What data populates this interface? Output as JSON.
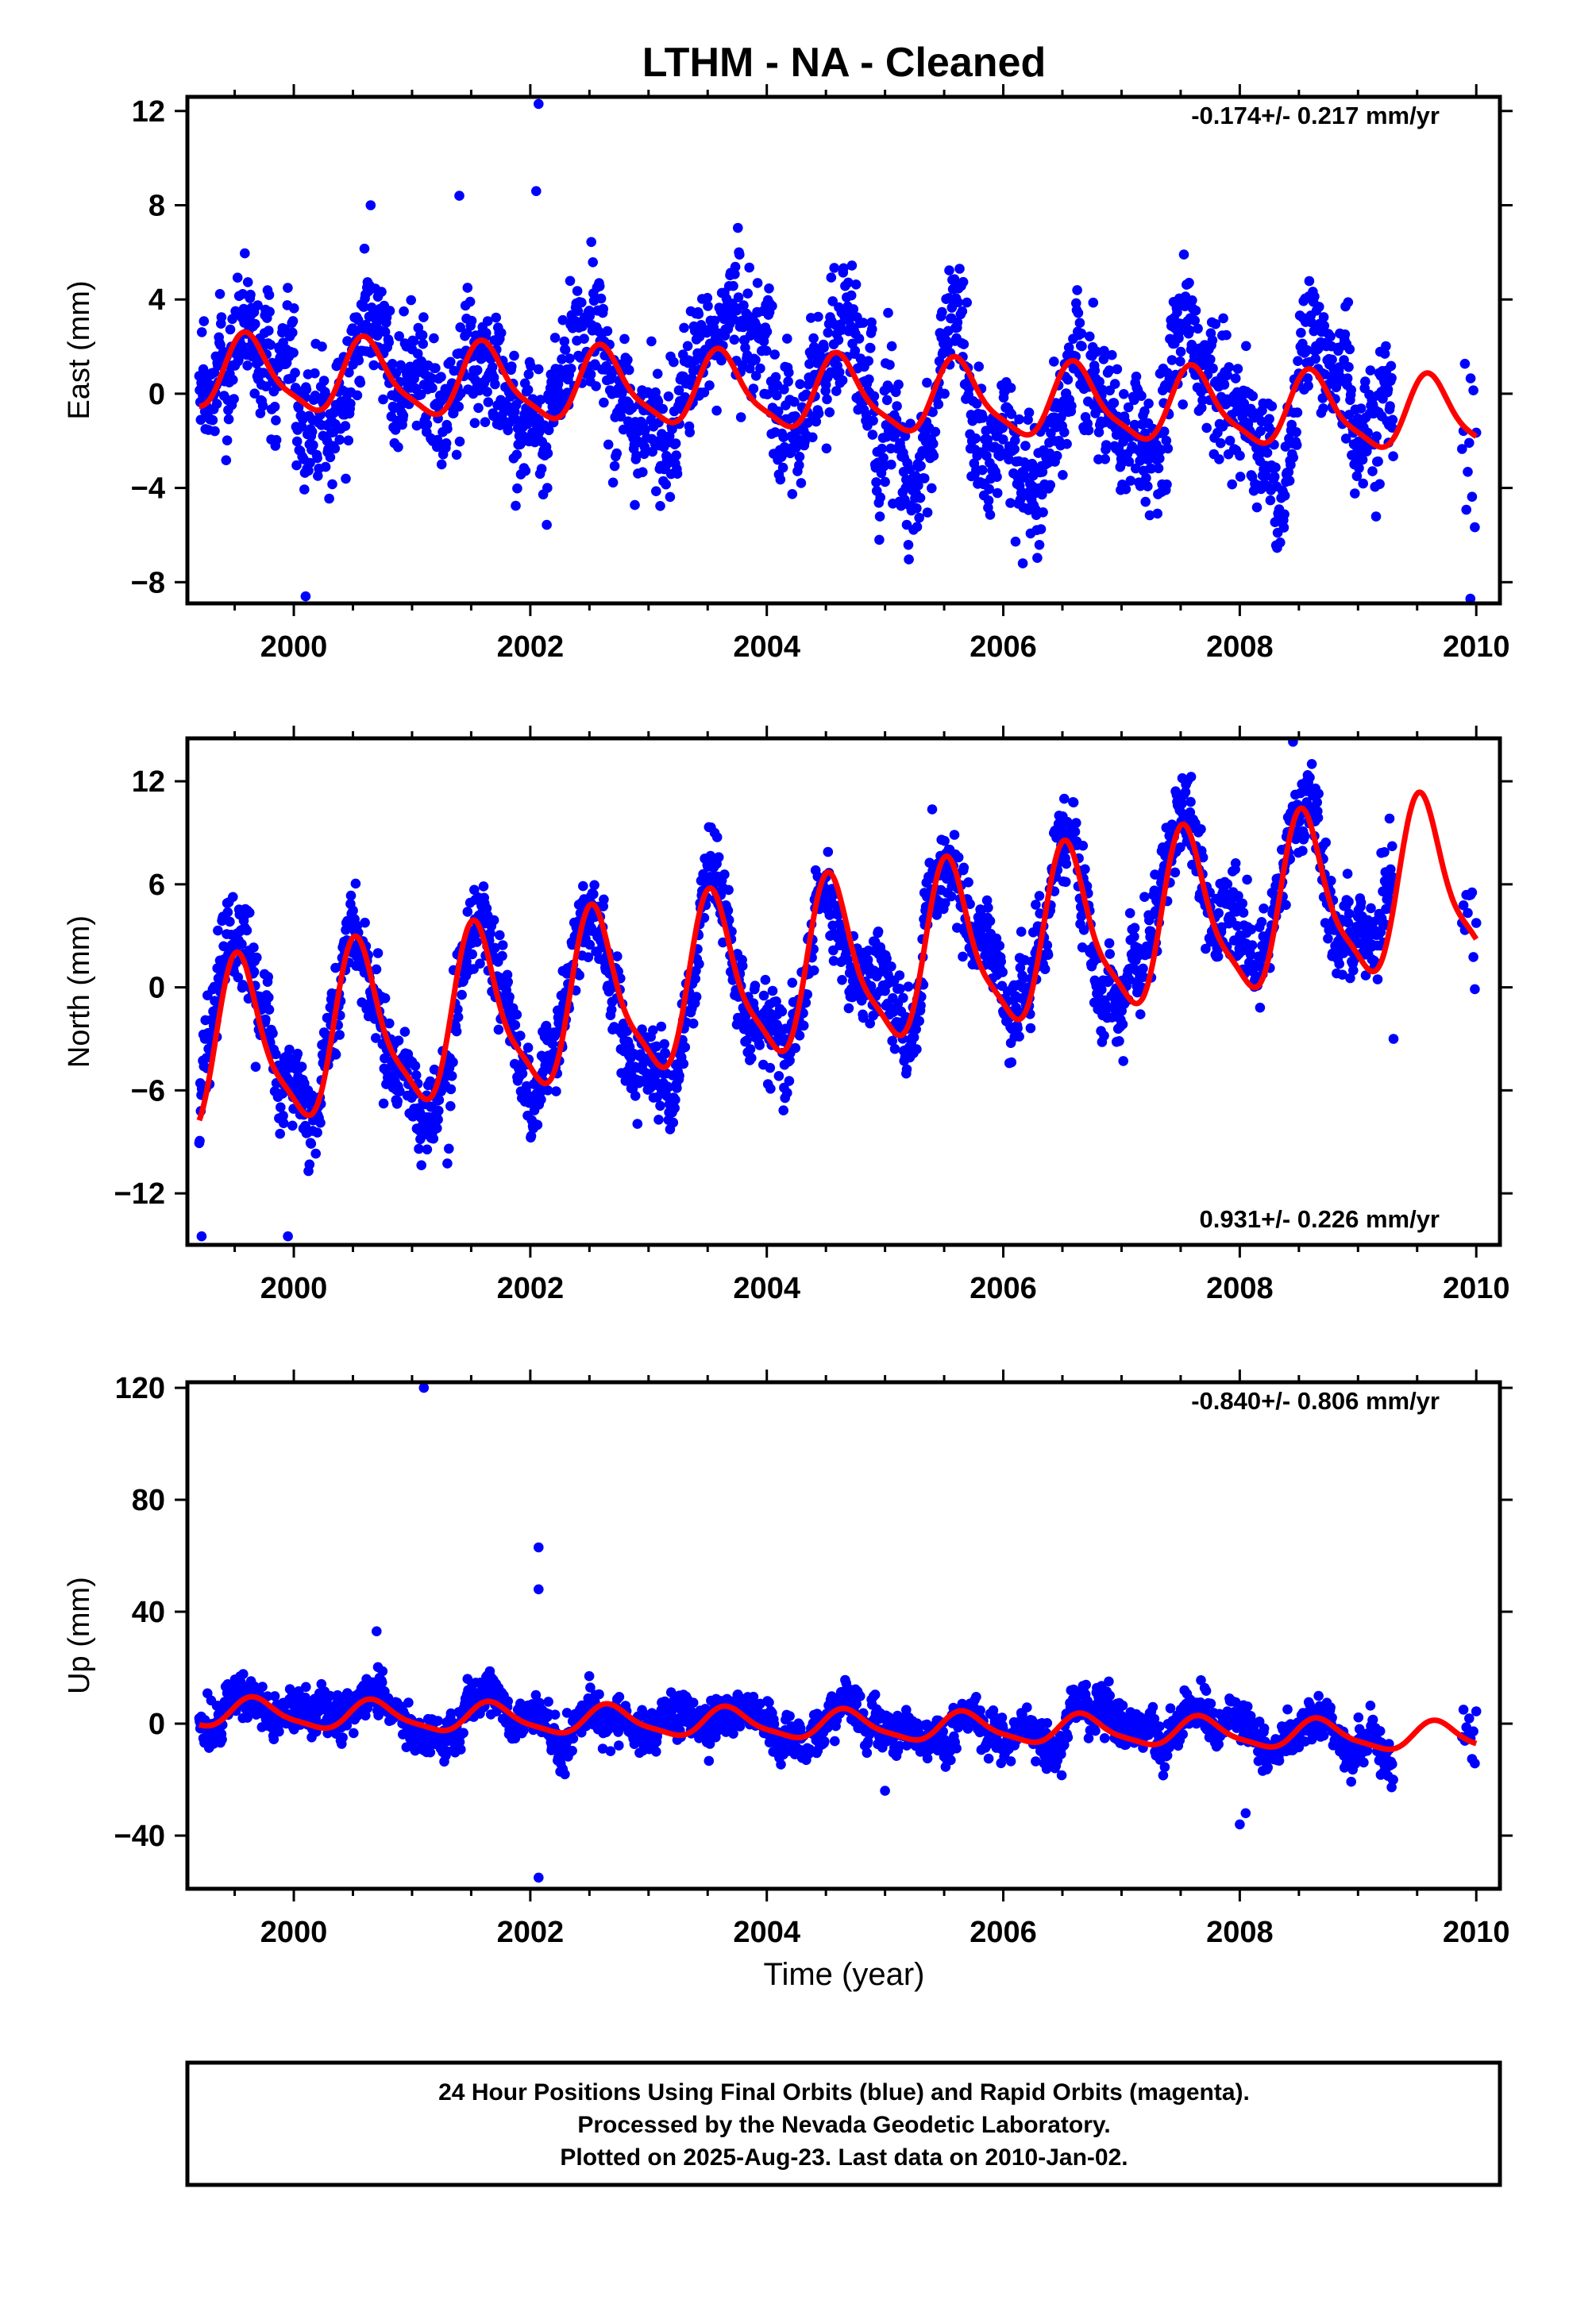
{
  "chart_data": {
    "type": "scatter",
    "title": "LTHM  - NA - Cleaned",
    "xlabel": "Time (year)",
    "x_ticks": [
      "2000",
      "2002",
      "2004",
      "2006",
      "2008",
      "2010"
    ],
    "xlim": [
      1999.1,
      2010.2
    ],
    "panels": [
      {
        "name": "east",
        "ylabel": "East (mm)",
        "ylim": [
          -8.9,
          12.6
        ],
        "y_ticks": [
          12,
          8,
          4,
          0,
          -4,
          -8
        ],
        "y_tick_labels": [
          "12",
          "8",
          "4",
          "0",
          "−4",
          "−8"
        ],
        "rate_text": "-0.174+/- 0.217 mm/yr",
        "rate_position": "top-right",
        "model": {
          "mean": -0.05,
          "trend": -0.174,
          "annual_amp": 1.5,
          "annual_peak": 1999.62,
          "noise": 1.6,
          "spike_seed": 11
        },
        "outliers": [
          [
            2002.07,
            12.3
          ],
          [
            2000.1,
            -8.6
          ],
          [
            2009.95,
            -8.7
          ],
          [
            2001.4,
            8.4
          ],
          [
            2000.65,
            8.0
          ],
          [
            2002.05,
            8.6
          ]
        ],
        "series": [
          {
            "name": "24 Hour Positions (Final Orbits)",
            "color": "#0000ff",
            "range": "1999.2-2010.0"
          },
          {
            "name": "model fit",
            "color": "#ff0000"
          }
        ]
      },
      {
        "name": "north",
        "ylabel": "North (mm)",
        "ylim": [
          -15.0,
          14.5
        ],
        "y_ticks": [
          12,
          6,
          0,
          -6,
          -12
        ],
        "y_tick_labels": [
          "12",
          "6",
          "0",
          "−6",
          "−12"
        ],
        "rate_text": "0.931+/- 0.226 mm/yr",
        "rate_position": "bottom-right",
        "model": {
          "mean": 1.0,
          "trend": 0.931,
          "annual_amp": 4.7,
          "annual_peak": 1999.55,
          "noise": 1.5,
          "spike_seed": 23
        },
        "outliers": [
          [
            1999.22,
            -14.5
          ],
          [
            1999.95,
            -14.5
          ],
          [
            2008.45,
            14.3
          ],
          [
            2009.3,
            -3.0
          ]
        ],
        "series": [
          {
            "name": "24 Hour Positions (Final Orbits)",
            "color": "#0000ff",
            "range": "1999.2-2010.0"
          },
          {
            "name": "model fit",
            "color": "#ff0000"
          }
        ]
      },
      {
        "name": "up",
        "ylabel": "Up (mm)",
        "ylim": [
          -59,
          122
        ],
        "y_ticks": [
          120,
          80,
          40,
          0,
          -40
        ],
        "y_tick_labels": [
          "120",
          "80",
          "40",
          "0",
          "−40"
        ],
        "rate_text": "-0.840+/- 0.806 mm/yr",
        "rate_position": "top-right",
        "model": {
          "mean": -0.5,
          "trend": -0.84,
          "annual_amp": 5.0,
          "annual_peak": 1999.68,
          "noise": 4.5,
          "spike_seed": 37
        },
        "outliers": [
          [
            2001.1,
            120
          ],
          [
            2002.07,
            63
          ],
          [
            2002.07,
            48
          ],
          [
            2002.07,
            -55
          ],
          [
            2008.0,
            -36
          ],
          [
            2008.05,
            -32
          ],
          [
            2005.0,
            -24
          ],
          [
            2000.7,
            33
          ]
        ],
        "series": [
          {
            "name": "24 Hour Positions (Final Orbits)",
            "color": "#0000ff",
            "range": "1999.2-2010.0"
          },
          {
            "name": "model fit",
            "color": "#ff0000"
          }
        ]
      }
    ]
  },
  "footer": {
    "line1": "24 Hour Positions Using Final Orbits (blue) and Rapid Orbits (magenta).",
    "line2": "Processed by the Nevada Geodetic Laboratory.",
    "line3": "Plotted on 2025-Aug-23. Last data on 2010-Jan-02."
  }
}
